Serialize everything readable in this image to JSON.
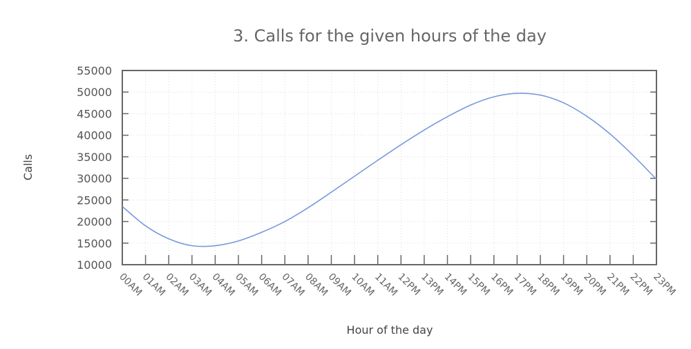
{
  "chart_data": {
    "type": "line",
    "title": "3. Calls for the given hours of the day",
    "xlabel": "Hour of the day",
    "ylabel": "Calls",
    "ylim": [
      10000,
      55000
    ],
    "y_ticks": [
      10000,
      15000,
      20000,
      25000,
      30000,
      35000,
      40000,
      45000,
      50000,
      55000
    ],
    "grid": true,
    "legend": "none",
    "categories": [
      "00AM",
      "01AM",
      "02AM",
      "03AM",
      "04AM",
      "05AM",
      "06AM",
      "07AM",
      "08AM",
      "09AM",
      "10AM",
      "11AM",
      "12PM",
      "13PM",
      "14PM",
      "15PM",
      "16PM",
      "17PM",
      "18PM",
      "19PM",
      "20PM",
      "21PM",
      "22PM",
      "23PM"
    ],
    "series": [
      {
        "color": "#7799dd",
        "values": [
          23500,
          19000,
          16000,
          14400,
          14400,
          15500,
          17500,
          20000,
          23200,
          26800,
          30500,
          34200,
          37800,
          41200,
          44300,
          47000,
          48900,
          49700,
          49300,
          47500,
          44400,
          40300,
          35300,
          29800
        ]
      }
    ]
  }
}
